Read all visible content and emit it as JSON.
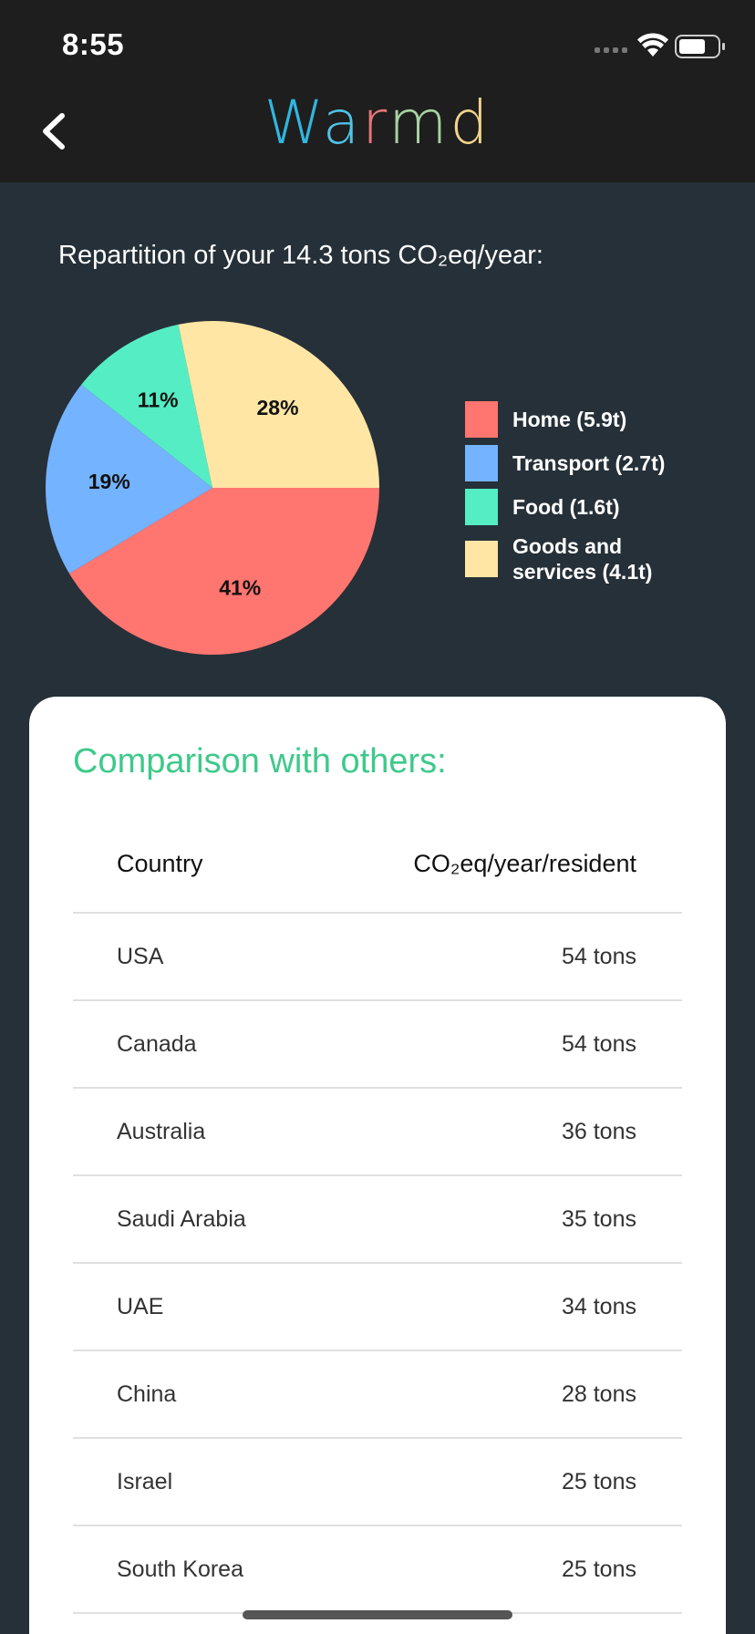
{
  "status_bar": {
    "time": "8:55"
  },
  "header": {
    "title_letters": [
      {
        "char": "W",
        "color": "#31b6e0"
      },
      {
        "char": "a",
        "color": "#4fc3e8"
      },
      {
        "char": "r",
        "color": "#e9747a"
      },
      {
        "char": "m",
        "color": "#a7d2a2"
      },
      {
        "char": "d",
        "color": "#f0d48a"
      }
    ]
  },
  "breakdown": {
    "heading": "Repartition of your 14.3 tons CO₂eq/year:"
  },
  "chart_data": {
    "type": "pie",
    "slices": [
      {
        "label": "Home (5.9t)",
        "value": 41,
        "display": "41%",
        "color": "#ff7570"
      },
      {
        "label": "Transport (2.7t)",
        "value": 19,
        "display": "19%",
        "color": "#74b3ff"
      },
      {
        "label": "Food (1.6t)",
        "value": 11,
        "display": "11%",
        "color": "#55edc3"
      },
      {
        "label": "Goods and services (4.1t)",
        "value": 28,
        "display": "28%",
        "color": "#ffe6a4"
      }
    ],
    "legend_placement": "right"
  },
  "comparison": {
    "heading": "Comparison with others:",
    "columns": [
      "Country",
      "CO₂eq/year/resident"
    ],
    "rows": [
      {
        "country": "USA",
        "value": "54 tons"
      },
      {
        "country": "Canada",
        "value": "54 tons"
      },
      {
        "country": "Australia",
        "value": "36 tons"
      },
      {
        "country": "Saudi Arabia",
        "value": "35 tons"
      },
      {
        "country": "UAE",
        "value": "34 tons"
      },
      {
        "country": "China",
        "value": "28 tons"
      },
      {
        "country": "Israel",
        "value": "25 tons"
      },
      {
        "country": "South Korea",
        "value": "25 tons"
      }
    ]
  }
}
